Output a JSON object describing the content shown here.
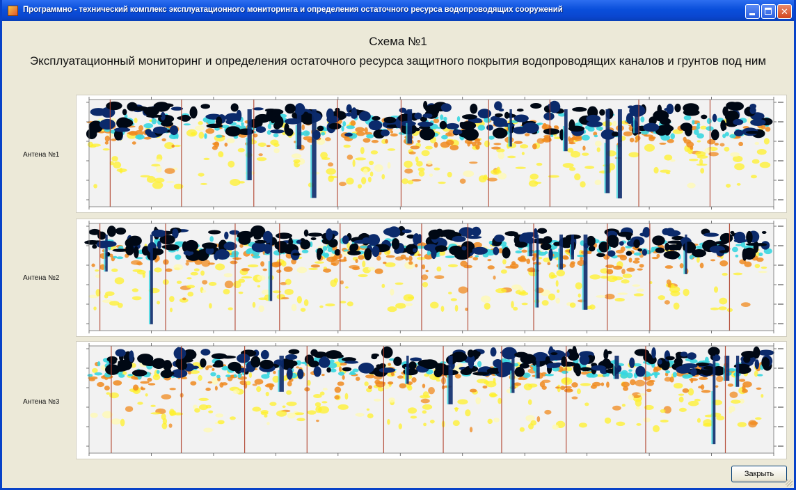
{
  "window": {
    "title": "Программно - технический комплекс эксплуатационного мониторинга и определения остаточного ресурса водопроводящих сооружений",
    "title_bar_color": "#0a4fdb",
    "icons": {
      "app": "app-icon",
      "minimize": "minimize-icon",
      "maximize": "maximize-icon",
      "close": "close-icon"
    }
  },
  "header": {
    "scheme_title": "Схема №1",
    "subtitle": "Эксплуатационный мониторинг и определения остаточного ресурса защитного покрытия водопроводящих каналов и грунтов под ним"
  },
  "antennas": [
    {
      "label": "Антена №1"
    },
    {
      "label": "Антена №2"
    },
    {
      "label": "Антена №3"
    }
  ],
  "palette": {
    "deep": "#000814",
    "navy": "#0b2a6b",
    "cyan": "#37d6e0",
    "orange": "#f08a1e",
    "yellow": "#fff02a",
    "pale": "#fff9b0",
    "marker": "#b0402a"
  },
  "footer": {
    "close_label": "Закрыть"
  }
}
